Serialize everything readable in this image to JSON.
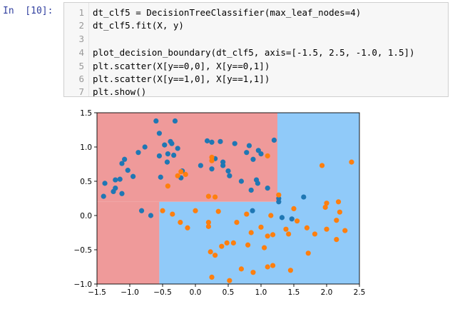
{
  "notebook": {
    "prompt": "In  [10]:",
    "code_lines": [
      {
        "num": "1",
        "text": "dt_clf5 = DecisionTreeClassifier(max_leaf_nodes=4)"
      },
      {
        "num": "2",
        "text": "dt_clf5.fit(X, y)"
      },
      {
        "num": "3",
        "text": ""
      },
      {
        "num": "4",
        "text": "plot_decision_boundary(dt_clf5, axis=[-1.5, 2.5, -1.0, 1.5])"
      },
      {
        "num": "5",
        "text": "plt.scatter(X[y==0,0], X[y==0,1])"
      },
      {
        "num": "6",
        "text": "plt.scatter(X[y==1,0], X[y==1,1])"
      },
      {
        "num": "7",
        "text": "plt.show()"
      }
    ]
  },
  "chart_data": {
    "type": "scatter",
    "title": "",
    "xlabel": "",
    "ylabel": "",
    "xlim": [
      -1.5,
      2.5
    ],
    "ylim": [
      -1.0,
      1.5
    ],
    "x_ticks": [
      "−1.5",
      "−1.0",
      "−0.5",
      "0.0",
      "0.5",
      "1.0",
      "1.5",
      "2.0",
      "2.5"
    ],
    "y_ticks": [
      "−1.0",
      "−0.5",
      "0.0",
      "0.5",
      "1.0",
      "1.5"
    ],
    "x_tick_values": [
      -1.5,
      -1.0,
      -0.5,
      0.0,
      0.5,
      1.0,
      1.5,
      2.0,
      2.5
    ],
    "y_tick_values": [
      -1.0,
      -0.5,
      0.0,
      0.5,
      1.0,
      1.5
    ],
    "regions": [
      {
        "class": 0,
        "color": "#ef9a9a",
        "x": [
          -1.5,
          1.25
        ],
        "y": [
          0.2,
          1.5
        ]
      },
      {
        "class": 0,
        "color": "#ef9a9a",
        "x": [
          -1.5,
          -0.55
        ],
        "y": [
          -1.0,
          0.2
        ]
      },
      {
        "class": 1,
        "color": "#90caf9",
        "x": [
          1.25,
          2.5
        ],
        "y": [
          -1.0,
          1.5
        ]
      },
      {
        "class": 1,
        "color": "#90caf9",
        "x": [
          -0.55,
          1.25
        ],
        "y": [
          -1.0,
          0.2
        ]
      }
    ],
    "series": [
      {
        "color": "#1f77b4",
        "points": [
          [
            -1.4,
            0.28
          ],
          [
            -1.38,
            0.47
          ],
          [
            -1.25,
            0.35
          ],
          [
            -1.22,
            0.4
          ],
          [
            -1.22,
            0.52
          ],
          [
            -1.15,
            0.53
          ],
          [
            -1.12,
            0.32
          ],
          [
            -1.12,
            0.76
          ],
          [
            -1.08,
            0.82
          ],
          [
            -1.03,
            0.66
          ],
          [
            -0.95,
            0.57
          ],
          [
            -0.87,
            0.92
          ],
          [
            -0.77,
            1.0
          ],
          [
            -0.6,
            1.38
          ],
          [
            -0.55,
            1.2
          ],
          [
            -0.55,
            0.87
          ],
          [
            -0.53,
            0.56
          ],
          [
            -0.47,
            1.03
          ],
          [
            -0.43,
            0.78
          ],
          [
            -0.42,
            0.9
          ],
          [
            -0.38,
            1.08
          ],
          [
            -0.36,
            1.05
          ],
          [
            -0.33,
            0.88
          ],
          [
            -0.31,
            1.38
          ],
          [
            -0.27,
            0.98
          ],
          [
            -0.2,
            0.65
          ],
          [
            -0.22,
            0.55
          ],
          [
            0.08,
            0.73
          ],
          [
            0.18,
            1.09
          ],
          [
            0.25,
            1.07
          ],
          [
            0.25,
            0.68
          ],
          [
            0.3,
            0.83
          ],
          [
            0.38,
            1.08
          ],
          [
            0.42,
            0.78
          ],
          [
            0.42,
            0.73
          ],
          [
            0.5,
            0.65
          ],
          [
            0.52,
            0.58
          ],
          [
            0.6,
            1.05
          ],
          [
            0.7,
            0.5
          ],
          [
            0.78,
            0.92
          ],
          [
            0.82,
            1.02
          ],
          [
            0.85,
            0.37
          ],
          [
            0.88,
            0.82
          ],
          [
            0.93,
            0.52
          ],
          [
            0.95,
            0.47
          ],
          [
            0.96,
            0.95
          ],
          [
            1.0,
            0.9
          ],
          [
            1.1,
            0.4
          ],
          [
            1.2,
            1.1
          ],
          [
            1.27,
            0.2
          ],
          [
            1.27,
            0.25
          ],
          [
            1.32,
            -0.03
          ],
          [
            -0.82,
            0.07
          ],
          [
            -0.68,
            0.0
          ],
          [
            0.87,
            0.07
          ],
          [
            1.65,
            0.27
          ],
          [
            1.47,
            -0.05
          ]
        ]
      },
      {
        "color": "#ff7f0e",
        "points": [
          [
            -0.5,
            0.07
          ],
          [
            -0.35,
            0.02
          ],
          [
            -0.42,
            0.43
          ],
          [
            -0.27,
            0.58
          ],
          [
            -0.22,
            0.64
          ],
          [
            -0.15,
            0.6
          ],
          [
            -0.23,
            -0.1
          ],
          [
            -0.12,
            -0.18
          ],
          [
            0.0,
            0.07
          ],
          [
            0.2,
            -0.1
          ],
          [
            0.2,
            -0.16
          ],
          [
            0.2,
            0.28
          ],
          [
            0.25,
            0.85
          ],
          [
            0.25,
            0.8
          ],
          [
            0.3,
            0.27
          ],
          [
            0.23,
            -0.53
          ],
          [
            0.3,
            -0.58
          ],
          [
            0.35,
            0.06
          ],
          [
            0.25,
            -0.9
          ],
          [
            0.4,
            -0.45
          ],
          [
            0.48,
            -0.4
          ],
          [
            0.52,
            -0.95
          ],
          [
            0.58,
            -0.4
          ],
          [
            0.63,
            -0.1
          ],
          [
            0.7,
            -0.78
          ],
          [
            0.78,
            0.02
          ],
          [
            0.8,
            -0.43
          ],
          [
            0.85,
            -0.25
          ],
          [
            0.88,
            -0.83
          ],
          [
            1.0,
            -0.17
          ],
          [
            1.05,
            -0.47
          ],
          [
            1.1,
            -0.3
          ],
          [
            1.1,
            -0.75
          ],
          [
            1.15,
            0.0
          ],
          [
            1.18,
            -0.28
          ],
          [
            1.18,
            -0.73
          ],
          [
            1.1,
            0.87
          ],
          [
            1.27,
            0.3
          ],
          [
            1.38,
            -0.2
          ],
          [
            1.42,
            -0.27
          ],
          [
            1.45,
            -0.8
          ],
          [
            1.5,
            0.1
          ],
          [
            1.55,
            -0.08
          ],
          [
            1.7,
            -0.18
          ],
          [
            1.72,
            -0.55
          ],
          [
            1.82,
            -0.27
          ],
          [
            1.93,
            0.73
          ],
          [
            1.98,
            0.12
          ],
          [
            2.0,
            -0.2
          ],
          [
            2.0,
            0.18
          ],
          [
            2.15,
            -0.07
          ],
          [
            2.15,
            -0.35
          ],
          [
            2.18,
            0.2
          ],
          [
            2.2,
            0.05
          ],
          [
            2.28,
            -0.22
          ],
          [
            2.38,
            0.78
          ]
        ]
      }
    ]
  }
}
